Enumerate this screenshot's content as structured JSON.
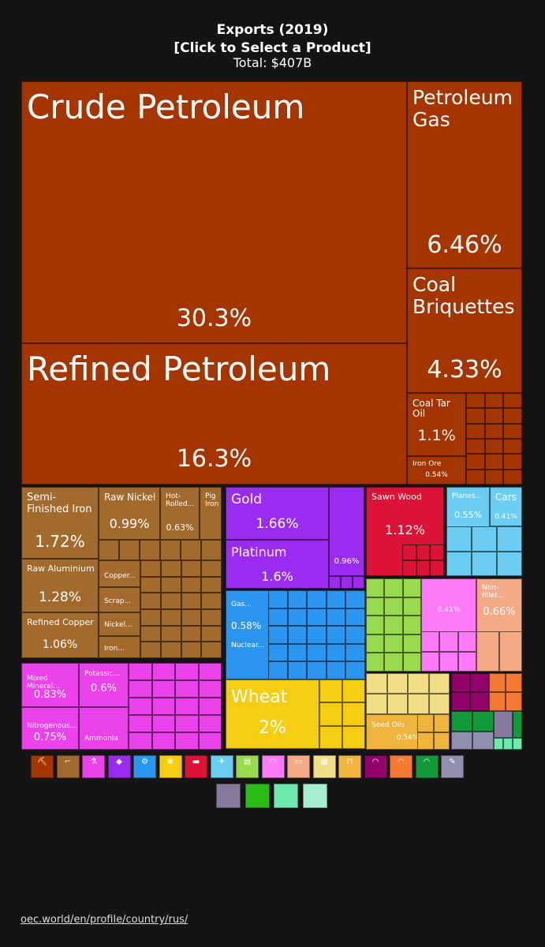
{
  "header": {
    "title_line1": "Exports (2019)",
    "title_line2": "[Click to Select a Product]",
    "total": "Total: $407B"
  },
  "colors": {
    "mineral": "#a43500",
    "metals": "#a26a2c",
    "chemicals": "#ec42ec",
    "precious": "#9a2bf1",
    "machines": "#2b96ef",
    "vegetable": "#f6cd10",
    "wood": "#dc1237",
    "transport": "#6bcdf1",
    "plant": "#99d94c",
    "plastics": "#ff7af6",
    "animal": "#f5aa86",
    "stone": "#f2dd87",
    "foodstuffs": "#eeb43c",
    "instruments": "#92006a",
    "misc": "#f57a31",
    "textiles": "#109a3b",
    "weapons": "#8f8faf",
    "other": "#877a9e"
  },
  "chart_data": {
    "type": "treemap",
    "title": "Exports (2019)",
    "subtitle": "[Click to Select a Product]",
    "total": "$407B",
    "labeled_items": [
      {
        "name": "Crude Petroleum",
        "value": 30.3
      },
      {
        "name": "Refined Petroleum",
        "value": 16.3
      },
      {
        "name": "Petroleum Gas",
        "value": 6.46
      },
      {
        "name": "Coal Briquettes",
        "value": 4.33
      },
      {
        "name": "Coal Tar Oil",
        "value": 1.1
      },
      {
        "name": "Iron Ore",
        "value": 0.54
      },
      {
        "name": "Semi-Finished Iron",
        "value": 1.72
      },
      {
        "name": "Raw Nickel",
        "value": 0.99
      },
      {
        "name": "Hot-Rolled...",
        "value": 0.63
      },
      {
        "name": "Pig Iron",
        "value": null
      },
      {
        "name": "Raw Aluminium",
        "value": 1.28
      },
      {
        "name": "Refined Copper",
        "value": 1.06
      },
      {
        "name": "Copper...",
        "value": null
      },
      {
        "name": "Scrap...",
        "value": null
      },
      {
        "name": "Nickel...",
        "value": null
      },
      {
        "name": "Iron...",
        "value": null
      },
      {
        "name": "Gold",
        "value": 1.66
      },
      {
        "name": "Platinum",
        "value": 1.6
      },
      {
        "name": "",
        "value": 0.96
      },
      {
        "name": "Sawn Wood",
        "value": 1.12
      },
      {
        "name": "Planes...",
        "value": 0.55
      },
      {
        "name": "Cars",
        "value": 0.41
      },
      {
        "name": "Gas...",
        "value": 0.58
      },
      {
        "name": "Nuclear...",
        "value": null
      },
      {
        "name": "",
        "value": 0.41
      },
      {
        "name": "Non-fillet...",
        "value": 0.66
      },
      {
        "name": "Mixed Mineral...",
        "value": 0.83
      },
      {
        "name": "Potassic...",
        "value": 0.6
      },
      {
        "name": "Nitrogenous...",
        "value": 0.75
      },
      {
        "name": "Ammonia",
        "value": null
      },
      {
        "name": "Wheat",
        "value": 2
      },
      {
        "name": "Seed Oils",
        "value": 0.54
      }
    ]
  },
  "legend": {
    "row1": [
      {
        "key": "mineral",
        "icon": "mineral-products-icon",
        "glyph": "⛏"
      },
      {
        "key": "metals",
        "icon": "metals-icon",
        "glyph": "⌐"
      },
      {
        "key": "chemicals",
        "icon": "chemical-products-icon",
        "glyph": "⚗"
      },
      {
        "key": "precious",
        "icon": "precious-metals-icon",
        "glyph": "◆"
      },
      {
        "key": "machines",
        "icon": "machines-icon",
        "glyph": "⚙"
      },
      {
        "key": "vegetable",
        "icon": "vegetable-products-icon",
        "glyph": "❀"
      },
      {
        "key": "wood",
        "icon": "wood-products-icon",
        "glyph": "▬"
      },
      {
        "key": "transport",
        "icon": "transportation-icon",
        "glyph": "✈"
      },
      {
        "key": "plant",
        "icon": "paper-goods-icon",
        "glyph": "▤"
      },
      {
        "key": "plastics",
        "icon": "plastics-icon",
        "glyph": "◠"
      },
      {
        "key": "animal",
        "icon": "animal-hides-icon",
        "glyph": "▭"
      },
      {
        "key": "stone",
        "icon": "stone-glass-icon",
        "glyph": "▦"
      },
      {
        "key": "foodstuffs",
        "icon": "foodstuffs-icon",
        "glyph": "⊓"
      },
      {
        "key": "instruments",
        "icon": "instruments-icon",
        "glyph": "◠"
      },
      {
        "key": "misc",
        "icon": "miscellaneous-icon",
        "glyph": "◠"
      },
      {
        "key": "textiles",
        "icon": "textiles-icon",
        "glyph": "◠"
      },
      {
        "key": "weapons",
        "icon": "weapons-icon",
        "glyph": "✎"
      }
    ],
    "row2": [
      {
        "color": "#877a9e",
        "icon": "arts-antiques-icon"
      },
      {
        "color": "#2cba16",
        "icon": "footwear-icon"
      },
      {
        "color": "#6eeaae",
        "icon": "animal-products-icon"
      },
      {
        "color": "#a5efd0",
        "icon": "animal-fats-icon"
      }
    ]
  },
  "footer": {
    "source_link": "oec.world/en/profile/country/rus/"
  }
}
